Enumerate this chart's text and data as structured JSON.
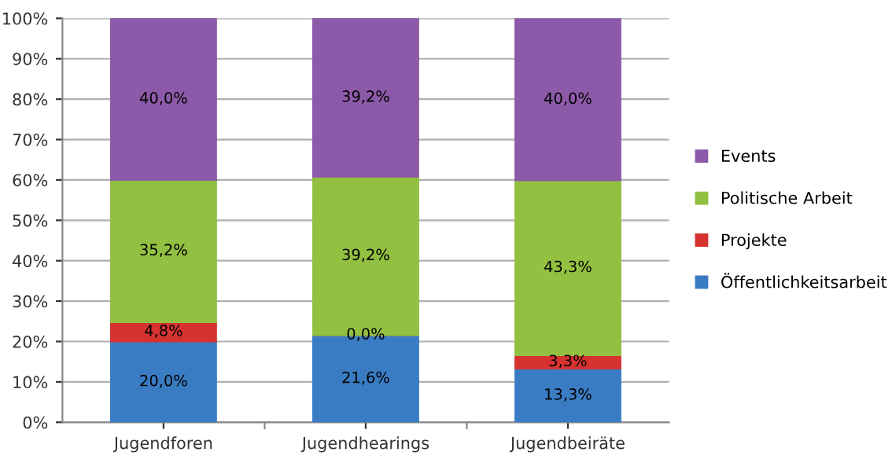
{
  "chart_data": {
    "type": "bar",
    "stacked": true,
    "categories": [
      "Jugendforen",
      "Jugendhearings",
      "Jugendbeiräte"
    ],
    "series": [
      {
        "name": "Öffentlichkeitsarbeit",
        "color": "#3a7cc4",
        "values": [
          20.0,
          21.6,
          13.3
        ],
        "value_labels": [
          "20,0%",
          "21,6%",
          "13,3%"
        ]
      },
      {
        "name": "Projekte",
        "color": "#d63330",
        "values": [
          4.8,
          0.0,
          3.3
        ],
        "value_labels": [
          "4,8%",
          "0,0%",
          "3,3%"
        ]
      },
      {
        "name": "Politische Arbeit",
        "color": "#92c040",
        "values": [
          35.2,
          39.2,
          43.3
        ],
        "value_labels": [
          "35,2%",
          "39,2%",
          "43,3%"
        ]
      },
      {
        "name": "Events",
        "color": "#8c5aa8",
        "values": [
          40.0,
          39.2,
          40.0
        ],
        "value_labels": [
          "40,0%",
          "39,2%",
          "40,0%"
        ]
      }
    ],
    "ylim": [
      0,
      100
    ],
    "yticks": [
      {
        "value": 0,
        "label": "0%"
      },
      {
        "value": 10,
        "label": "10%"
      },
      {
        "value": 20,
        "label": "20%"
      },
      {
        "value": 30,
        "label": "30%"
      },
      {
        "value": 40,
        "label": "40%"
      },
      {
        "value": 50,
        "label": "50%"
      },
      {
        "value": 60,
        "label": "60%"
      },
      {
        "value": 70,
        "label": "70%"
      },
      {
        "value": 80,
        "label": "80%"
      },
      {
        "value": 90,
        "label": "90%"
      },
      {
        "value": 100,
        "label": "100%"
      }
    ],
    "grid": "y",
    "legend": "right"
  }
}
